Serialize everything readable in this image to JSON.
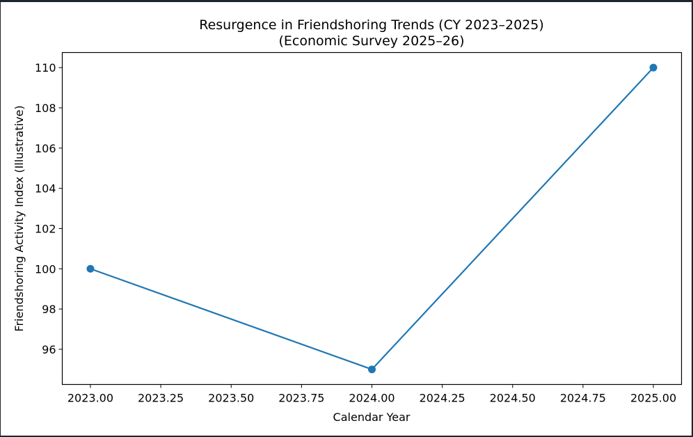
{
  "chart_data": {
    "type": "line",
    "title": "Resurgence in Friendshoring Trends (CY 2023–2025)",
    "subtitle": "(Economic Survey 2025–26)",
    "xlabel": "Calendar Year",
    "ylabel": "Friendshoring Activity Index (Illustrative)",
    "x": [
      2023,
      2024,
      2025
    ],
    "series": [
      {
        "values": [
          100,
          95,
          110
        ],
        "color": "#1f77b4",
        "marker": "circle"
      }
    ],
    "xlim": [
      2022.9,
      2025.1
    ],
    "ylim": [
      94.25,
      110.75
    ],
    "xticks": [
      "2023.00",
      "2023.25",
      "2023.50",
      "2023.75",
      "2024.00",
      "2024.25",
      "2024.50",
      "2024.75",
      "2025.00"
    ],
    "yticks": [
      "96",
      "98",
      "100",
      "102",
      "104",
      "106",
      "108",
      "110"
    ],
    "grid": false
  }
}
